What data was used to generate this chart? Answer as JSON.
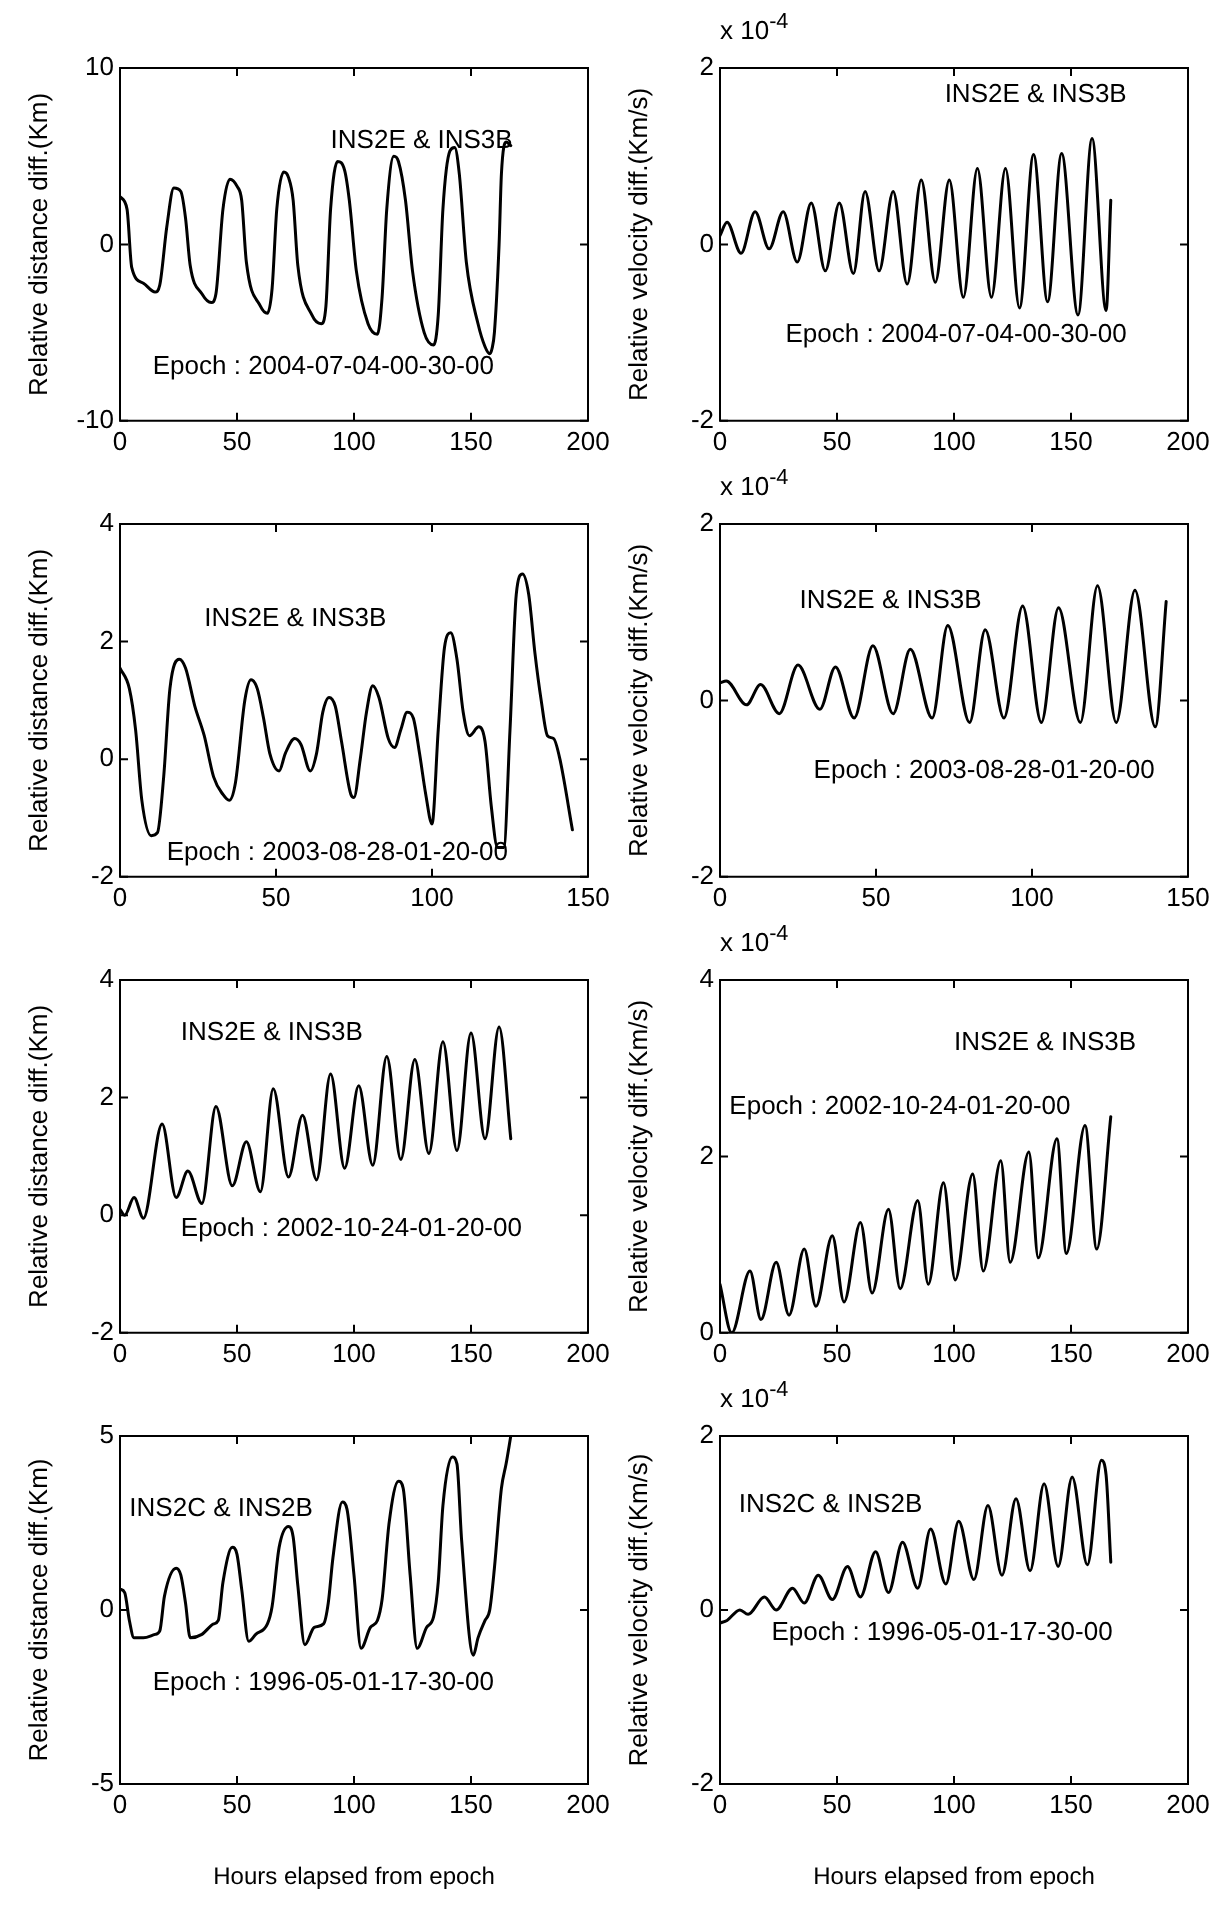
{
  "chart_data": [
    {
      "type": "line",
      "ylabel": "Relative distance diff.(Km)",
      "color": "#000000",
      "marker": "none",
      "xlim": [
        0,
        200
      ],
      "xticks": [
        0,
        50,
        100,
        150,
        200
      ],
      "ylim": [
        -10,
        10
      ],
      "yticks": [
        -10,
        0,
        10
      ],
      "annotations": [
        "INS2E & INS3B",
        "Epoch : 2004-07-04-00-30-00"
      ],
      "x": [
        0,
        3,
        5,
        10,
        15,
        17,
        20,
        23,
        26,
        28,
        30,
        35,
        39,
        41,
        44,
        47,
        50,
        52,
        54,
        60,
        63,
        65,
        67,
        70,
        72,
        74,
        76,
        82,
        86,
        88,
        90,
        93,
        96,
        98,
        101,
        106,
        110,
        112,
        114,
        117,
        119,
        122,
        125,
        130,
        134,
        136,
        138,
        141,
        143,
        145,
        148,
        153,
        156,
        158,
        159,
        160,
        162,
        163,
        165,
        167
      ],
      "values": [
        2.7,
        2,
        -1.3,
        -2.2,
        -2.7,
        -2.3,
        1,
        3.2,
        3,
        1.5,
        -1.2,
        -2.8,
        -3.3,
        -2.8,
        2,
        3.7,
        3.3,
        2.5,
        -1,
        -3.5,
        -3.9,
        -2.5,
        2,
        4.1,
        3.8,
        2.5,
        -1.2,
        -4,
        -4.5,
        -3.5,
        2,
        4.7,
        4.2,
        2.5,
        -1.5,
        -4.5,
        -5.1,
        -3,
        2,
        5,
        4.7,
        2.5,
        -1.5,
        -5,
        -5.7,
        -4,
        2,
        5.3,
        5.5,
        4,
        -1,
        -4.5,
        -5.8,
        -6.2,
        -5.9,
        -5,
        0,
        4,
        5.8,
        5.6
      ]
    },
    {
      "type": "line",
      "ylabel": "Relative velocity diff.(Km/s)",
      "color": "#000000",
      "marker": "none",
      "xlim": [
        0,
        200
      ],
      "xticks": [
        0,
        50,
        100,
        150,
        200
      ],
      "ylim": [
        -2,
        2
      ],
      "yticks": [
        -2,
        0,
        2
      ],
      "annotations": [
        "x 10$^{-4}$",
        "INS2E & INS3B",
        "Epoch : 2004-07-04-00-30-00"
      ],
      "x": [
        0,
        3,
        9,
        15,
        21,
        27,
        33,
        39,
        45,
        51,
        57,
        62,
        68,
        74,
        80,
        86,
        92,
        98,
        104,
        110,
        116,
        122,
        128,
        134,
        140,
        146,
        153,
        159,
        165,
        167
      ],
      "values": [
        0.1,
        0.25,
        -0.1,
        0.37,
        -0.05,
        0.37,
        -0.2,
        0.47,
        -0.3,
        0.47,
        -0.33,
        0.6,
        -0.3,
        0.6,
        -0.45,
        0.73,
        -0.43,
        0.73,
        -0.6,
        0.86,
        -0.6,
        0.86,
        -0.72,
        1.02,
        -0.65,
        1.03,
        -0.8,
        1.2,
        -0.75,
        0.5
      ]
    },
    {
      "type": "line",
      "ylabel": "Relative distance diff.(Km)",
      "color": "#000000",
      "marker": "none",
      "xlim": [
        0,
        150
      ],
      "xticks": [
        0,
        50,
        100,
        150
      ],
      "ylim": [
        -2,
        4
      ],
      "yticks": [
        -2,
        0,
        2,
        4
      ],
      "annotations": [
        "INS2E & INS3B",
        "Epoch : 2003-08-28-01-20-00"
      ],
      "x": [
        0,
        3,
        5,
        7,
        10,
        12,
        14,
        16,
        19,
        21,
        24,
        27,
        30,
        33,
        35,
        37,
        40,
        42,
        44,
        46,
        48,
        51,
        53,
        56,
        58,
        61,
        63,
        65,
        67,
        69,
        71,
        74,
        75,
        77,
        79,
        81,
        83,
        86,
        88,
        90,
        92,
        94,
        96,
        98,
        100,
        102,
        104,
        106,
        108,
        110,
        112,
        115,
        117,
        119,
        121,
        123,
        125,
        127,
        129,
        131,
        133,
        135,
        137,
        139,
        141,
        145
      ],
      "values": [
        1.55,
        1.2,
        0.5,
        -0.7,
        -1.3,
        -1.25,
        -0.3,
        1.2,
        1.7,
        1.55,
        0.9,
        0.4,
        -0.3,
        -0.6,
        -0.7,
        -0.4,
        1,
        1.35,
        1.2,
        0.7,
        0.1,
        -0.2,
        0.1,
        0.35,
        0.25,
        -0.2,
        0.1,
        0.8,
        1.05,
        0.9,
        0.3,
        -0.6,
        -0.65,
        0,
        0.8,
        1.25,
        1.05,
        0.35,
        0.2,
        0.5,
        0.8,
        0.7,
        0.1,
        -0.6,
        -1.1,
        0.5,
        1.9,
        2.15,
        1.7,
        0.8,
        0.4,
        0.55,
        0.3,
        -0.8,
        -1.5,
        -1.5,
        0.5,
        2.8,
        3.15,
        2.8,
        1.8,
        1,
        0.4,
        0.35,
        0,
        -1.2
      ]
    },
    {
      "type": "line",
      "ylabel": "Relative velocity diff.(Km/s)",
      "color": "#000000",
      "marker": "none",
      "xlim": [
        0,
        150
      ],
      "xticks": [
        0,
        50,
        100,
        150
      ],
      "ylim": [
        -2,
        2
      ],
      "yticks": [
        -2,
        0,
        2
      ],
      "annotations": [
        "x 10$^{-4}$",
        "INS2E & INS3B",
        "Epoch : 2003-08-28-01-20-00"
      ],
      "x": [
        0,
        2,
        8.5,
        13,
        19,
        25,
        32,
        37,
        43,
        49,
        55.5,
        61,
        68,
        73,
        80,
        85,
        91,
        97,
        103,
        108.5,
        115.5,
        121,
        127,
        133,
        139.5,
        143
      ],
      "values": [
        0.2,
        0.22,
        -0.05,
        0.18,
        -0.15,
        0.4,
        -0.1,
        0.38,
        -0.2,
        0.62,
        -0.15,
        0.58,
        -0.2,
        0.85,
        -0.25,
        0.8,
        -0.2,
        1.07,
        -0.25,
        1.05,
        -0.25,
        1.3,
        -0.25,
        1.25,
        -0.3,
        1.12
      ]
    },
    {
      "type": "line",
      "ylabel": "Relative distance diff.(Km)",
      "color": "#000000",
      "marker": "none",
      "xlim": [
        0,
        200
      ],
      "xticks": [
        0,
        50,
        100,
        150,
        200
      ],
      "ylim": [
        -2,
        4
      ],
      "yticks": [
        -2,
        0,
        2,
        4
      ],
      "annotations": [
        "INS2E & INS3B",
        "Epoch : 2002-10-24-01-20-00"
      ],
      "x": [
        0,
        2,
        6,
        10,
        18,
        24,
        29,
        35,
        41,
        48,
        54,
        60,
        65.5,
        72,
        78,
        84,
        90,
        96,
        102,
        108,
        114,
        120,
        126,
        132,
        138,
        144,
        150,
        156,
        162,
        167
      ],
      "values": [
        0.1,
        0,
        0.3,
        -0.05,
        1.55,
        0.3,
        0.75,
        0.2,
        1.85,
        0.5,
        1.25,
        0.4,
        2.15,
        0.65,
        1.7,
        0.6,
        2.4,
        0.8,
        2.2,
        0.85,
        2.7,
        0.95,
        2.65,
        1.05,
        2.95,
        1.1,
        3.1,
        1.3,
        3.2,
        1.3
      ]
    },
    {
      "type": "line",
      "ylabel": "Relative velocity diff.(Km/s)",
      "color": "#000000",
      "marker": "none",
      "xlim": [
        0,
        200
      ],
      "xticks": [
        0,
        50,
        100,
        150,
        200
      ],
      "ylim": [
        0,
        4
      ],
      "yticks": [
        0,
        2,
        4
      ],
      "annotations": [
        "x 10$^{-4}$",
        "INS2E & INS3B",
        "Epoch : 2002-10-24-01-20-00"
      ],
      "x": [
        0,
        5,
        12.8,
        17.5,
        24,
        29.5,
        36,
        41,
        48,
        53,
        60,
        65,
        72,
        77,
        84.5,
        89,
        95.5,
        100.5,
        108,
        112.5,
        120,
        124,
        132,
        136,
        144,
        148,
        156,
        161,
        167
      ],
      "values": [
        0.55,
        0,
        0.7,
        0.15,
        0.8,
        0.2,
        0.95,
        0.3,
        1.1,
        0.35,
        1.25,
        0.45,
        1.4,
        0.5,
        1.5,
        0.55,
        1.7,
        0.6,
        1.8,
        0.7,
        1.95,
        0.8,
        2.05,
        0.85,
        2.2,
        0.9,
        2.35,
        0.95,
        2.45
      ]
    },
    {
      "type": "line",
      "ylabel": "Relative distance diff.(Km)",
      "xlabel": "Hours elapsed from epoch",
      "color": "#000000",
      "marker": "none",
      "xlim": [
        0,
        200
      ],
      "xticks": [
        0,
        50,
        100,
        150,
        200
      ],
      "ylim": [
        -5,
        5
      ],
      "yticks": [
        -5,
        0,
        5
      ],
      "annotations": [
        "INS2C & INS2B",
        "Epoch : 1996-05-01-17-30-00"
      ],
      "x": [
        0,
        2,
        4,
        6,
        10,
        15,
        17,
        19,
        24,
        26,
        28,
        30,
        35,
        40,
        42,
        44,
        48,
        50,
        52,
        55,
        58,
        63,
        65,
        68,
        72,
        74,
        76,
        79,
        83,
        87,
        89,
        91,
        95,
        97,
        100,
        103,
        107,
        110,
        112,
        115,
        119,
        121,
        124,
        127,
        131,
        134,
        136,
        138,
        142,
        144,
        146,
        151,
        153,
        156,
        158,
        160,
        163,
        165,
        167
      ],
      "values": [
        0.6,
        0.5,
        -0.3,
        -0.8,
        -0.8,
        -0.7,
        -0.6,
        0.4,
        1.2,
        1,
        0.2,
        -0.8,
        -0.7,
        -0.4,
        -0.3,
        0.8,
        1.8,
        1.6,
        0.6,
        -0.9,
        -0.7,
        -0.4,
        0.1,
        1.8,
        2.4,
        2.1,
        0.7,
        -1,
        -0.5,
        -0.4,
        0.2,
        1.5,
        3.1,
        2.9,
        1,
        -1.1,
        -0.5,
        -0.3,
        0.3,
        2.5,
        3.7,
        3.5,
        1,
        -1.1,
        -0.5,
        -0.2,
        0.8,
        3,
        4.4,
        4.2,
        2,
        -1.3,
        -0.8,
        -0.3,
        0,
        1.2,
        3.5,
        4.2,
        5
      ]
    },
    {
      "type": "line",
      "ylabel": "Relative velocity diff.(Km/s)",
      "xlabel": "Hours elapsed from epoch",
      "color": "#000000",
      "marker": "none",
      "xlim": [
        0,
        200
      ],
      "xticks": [
        0,
        50,
        100,
        150,
        200
      ],
      "ylim": [
        -2,
        2
      ],
      "yticks": [
        -2,
        0,
        2
      ],
      "annotations": [
        "x 10$^{-4}$",
        "INS2C & INS2B",
        "Epoch : 1996-05-01-17-30-00"
      ],
      "x": [
        0,
        3,
        8.5,
        12,
        19,
        24,
        31,
        36,
        42,
        48,
        54.5,
        60,
        66.5,
        72,
        78,
        84.5,
        90,
        96.5,
        102,
        108.5,
        114.5,
        120.5,
        126.5,
        132.5,
        138.5,
        144.5,
        150.5,
        157,
        163,
        165,
        167
      ],
      "values": [
        -0.15,
        -0.12,
        0,
        -0.05,
        0.15,
        0,
        0.25,
        0.08,
        0.4,
        0.12,
        0.5,
        0.15,
        0.67,
        0.2,
        0.78,
        0.25,
        0.93,
        0.3,
        1.02,
        0.35,
        1.2,
        0.4,
        1.28,
        0.45,
        1.45,
        0.5,
        1.53,
        0.52,
        1.72,
        1.55,
        0.55
      ]
    }
  ]
}
